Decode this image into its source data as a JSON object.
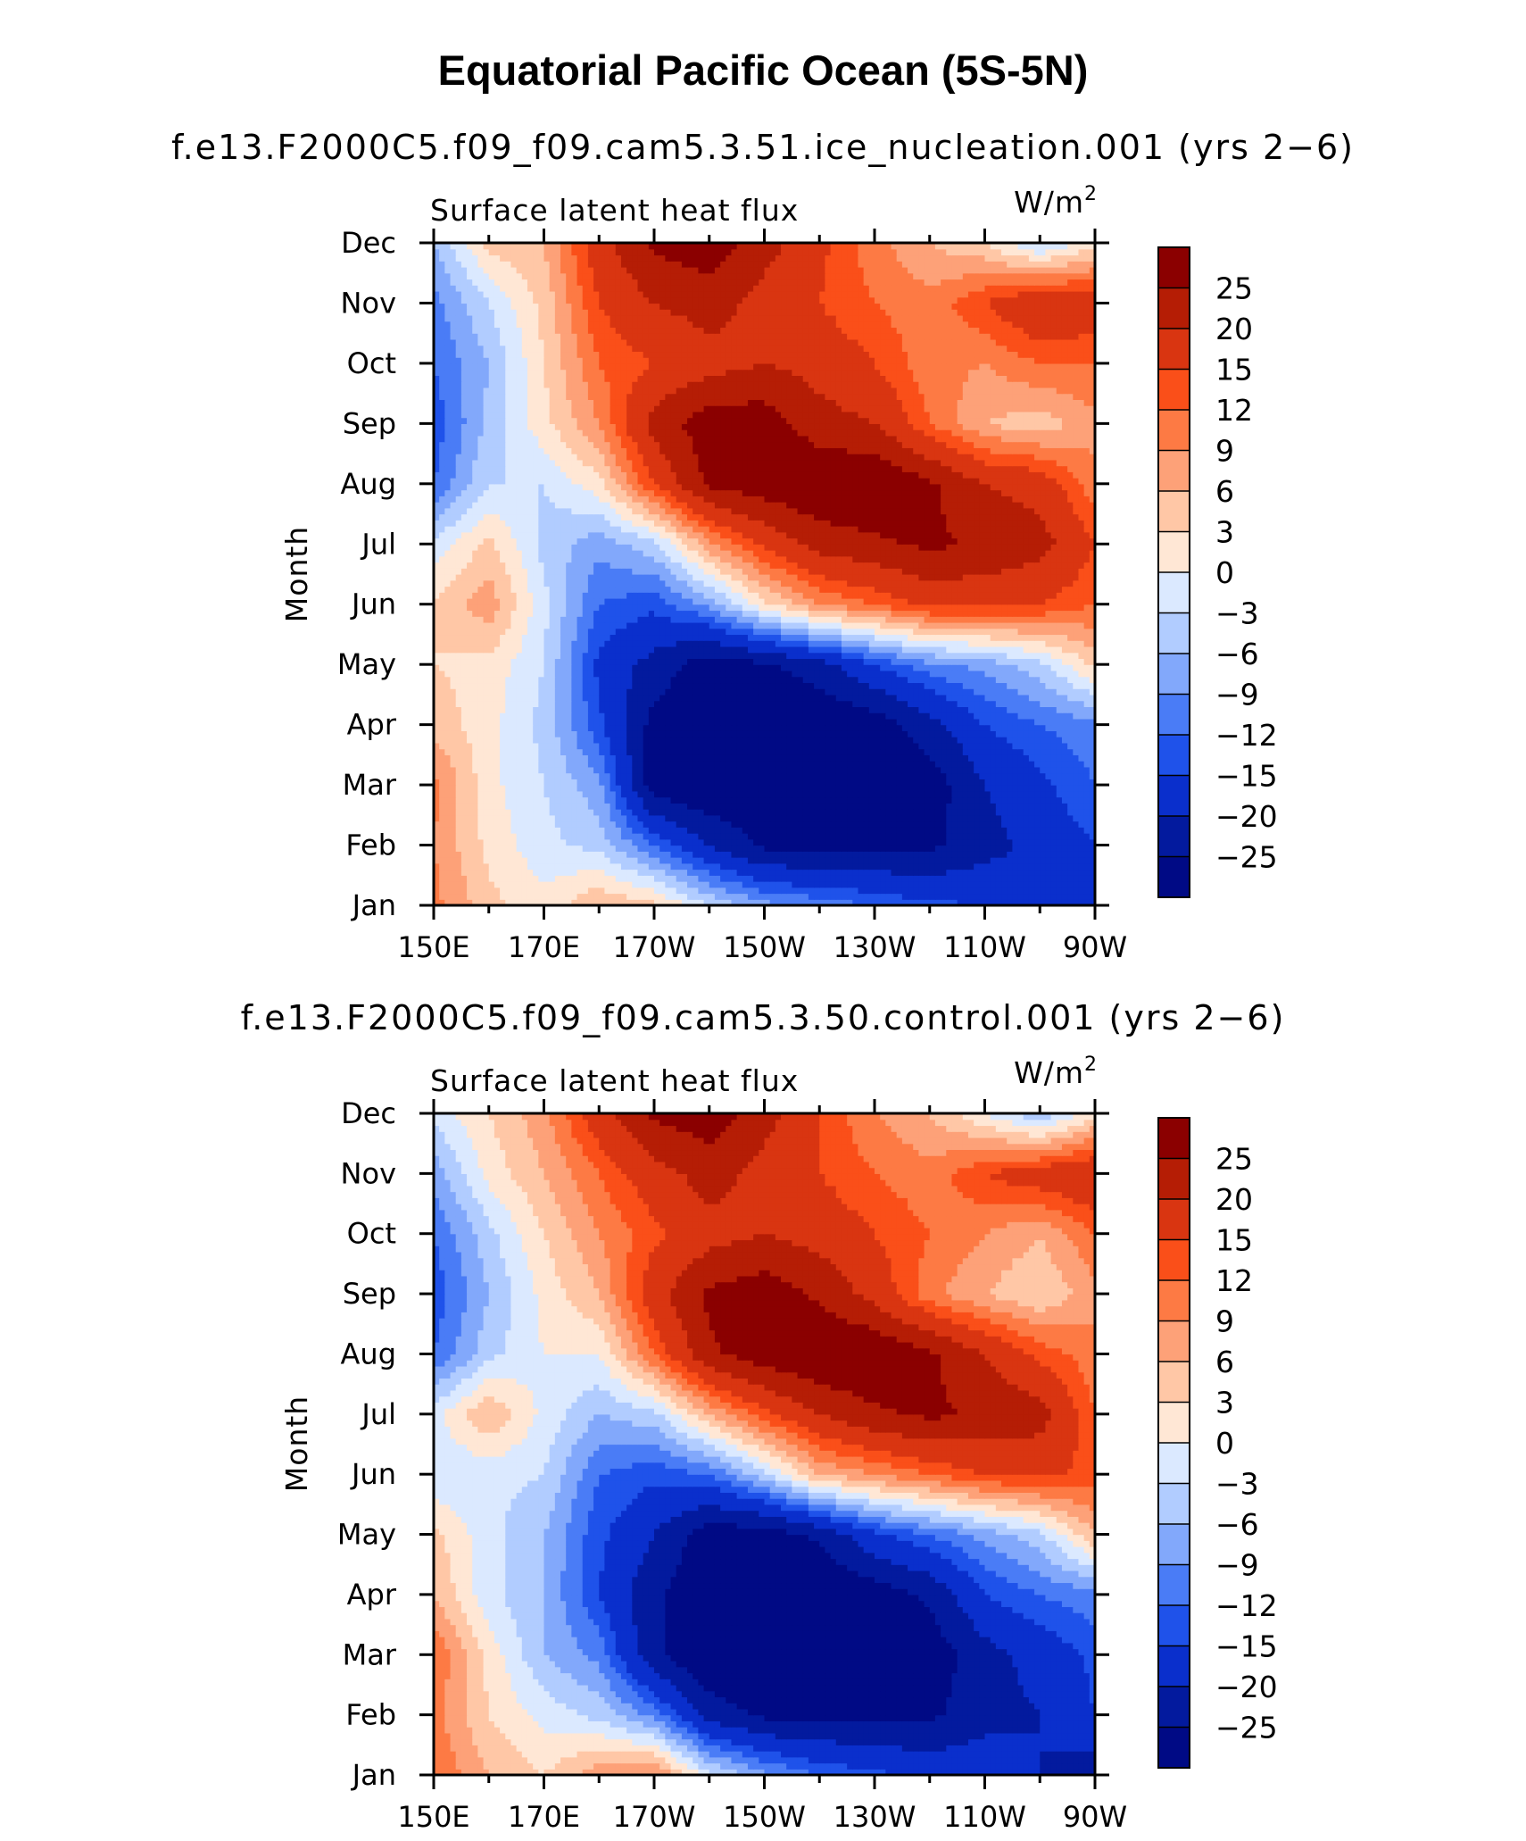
{
  "figure": {
    "title": "Equatorial Pacific Ocean (5S-5N)"
  },
  "colorbar": {
    "levels": [
      "25",
      "20",
      "15",
      "12",
      "9",
      "6",
      "3",
      "0",
      "−3",
      "−6",
      "−9",
      "−12",
      "−15",
      "−20",
      "−25"
    ],
    "colors": [
      "#8b0000",
      "#b51d05",
      "#d93511",
      "#fa4f19",
      "#fd7a44",
      "#fda178",
      "#ffc7a6",
      "#ffe7d5",
      "#dbe9ff",
      "#b1ccff",
      "#82a8fb",
      "#4a7cf6",
      "#1f52ea",
      "#0a2fcc",
      "#031a9e",
      "#000a85"
    ]
  },
  "chart_data": [
    {
      "type": "heatmap",
      "title": "f.e13.F2000C5.f09_f09.cam5.3.51.ice_nucleation.001 (yrs 2−6)",
      "left_string": "Surface latent heat flux",
      "right_string": "W/m",
      "right_superscript": "2",
      "ylabel": "Month",
      "xticklabels": [
        "150E",
        "170E",
        "170W",
        "150W",
        "130W",
        "110W",
        "90W"
      ],
      "x": [
        150,
        170,
        190,
        210,
        230,
        250,
        270
      ],
      "yticklabels": [
        "Dec",
        "Nov",
        "Oct",
        "Sep",
        "Aug",
        "Jul",
        "Jun",
        "May",
        "Apr",
        "Mar",
        "Feb",
        "Jan"
      ],
      "xlim": [
        150,
        270
      ],
      "ylim": [
        "Jan",
        "Dec"
      ],
      "z_note": "approximate contour values per month (rows Jan..Dec) at 10-degree longitude steps 150E..90W",
      "lon": [
        150,
        160,
        170,
        180,
        190,
        200,
        210,
        220,
        230,
        240,
        250,
        260,
        270
      ],
      "z": [
        [
          10,
          4,
          1,
          6,
          4,
          -3,
          -8,
          -10,
          -12,
          -14,
          -15,
          -20,
          -18
        ],
        [
          9,
          2,
          -2,
          -4,
          -12,
          -20,
          -26,
          -26,
          -26,
          -26,
          -22,
          -18,
          -15
        ],
        [
          10,
          1,
          -3,
          -8,
          -28,
          -30,
          -30,
          -30,
          -30,
          -28,
          -20,
          -16,
          -12
        ],
        [
          5,
          1,
          -4,
          -14,
          -27,
          -30,
          -30,
          -30,
          -28,
          -22,
          -15,
          -12,
          -10
        ],
        [
          3,
          2,
          -3,
          -16,
          -22,
          -28,
          -26,
          -22,
          -15,
          -10,
          -8,
          -4,
          4
        ],
        [
          3,
          8,
          -2,
          -12,
          -14,
          -8,
          2,
          9,
          12,
          16,
          16,
          15,
          12
        ],
        [
          -2,
          4,
          -4,
          -8,
          -4,
          8,
          16,
          22,
          24,
          26,
          24,
          22,
          15
        ],
        [
          -12,
          -3,
          -3,
          2,
          15,
          26,
          28,
          30,
          30,
          26,
          20,
          18,
          10
        ],
        [
          -14,
          -5,
          2,
          9,
          22,
          28,
          28,
          22,
          20,
          12,
          6,
          4,
          8
        ],
        [
          -12,
          -6,
          3,
          12,
          15,
          18,
          20,
          18,
          15,
          10,
          9,
          12,
          12
        ],
        [
          -10,
          -3,
          4,
          15,
          20,
          22,
          18,
          15,
          12,
          10,
          15,
          20,
          18
        ],
        [
          -6,
          4,
          6,
          18,
          26,
          28,
          22,
          16,
          10,
          6,
          3,
          -4,
          2
        ]
      ]
    },
    {
      "type": "heatmap",
      "title": "f.e13.F2000C5.f09_f09.cam5.3.50.control.001 (yrs 2−6)",
      "left_string": "Surface latent heat flux",
      "right_string": "W/m",
      "right_superscript": "2",
      "ylabel": "Month",
      "xticklabels": [
        "150E",
        "170E",
        "170W",
        "150W",
        "130W",
        "110W",
        "90W"
      ],
      "x": [
        150,
        170,
        190,
        210,
        230,
        250,
        270
      ],
      "yticklabels": [
        "Dec",
        "Nov",
        "Oct",
        "Sep",
        "Aug",
        "Jul",
        "Jun",
        "May",
        "Apr",
        "Mar",
        "Feb",
        "Jan"
      ],
      "xlim": [
        150,
        270
      ],
      "ylim": [
        "Jan",
        "Dec"
      ],
      "z_note": "approximate contour values per month (rows Jan..Dec) at 10-degree longitude steps 150E..90W",
      "lon": [
        150,
        160,
        170,
        180,
        190,
        200,
        210,
        220,
        230,
        240,
        250,
        260,
        270
      ],
      "z": [
        [
          12,
          6,
          3,
          8,
          10,
          -2,
          -8,
          -12,
          -14,
          -16,
          -16,
          -20,
          -24
        ],
        [
          10,
          3,
          -1,
          -4,
          -10,
          -22,
          -26,
          -26,
          -26,
          -26,
          -22,
          -20,
          -15
        ],
        [
          12,
          2,
          -6,
          -10,
          -24,
          -30,
          -30,
          -30,
          -30,
          -28,
          -22,
          -18,
          -14
        ],
        [
          6,
          -2,
          -6,
          -15,
          -24,
          -30,
          -30,
          -30,
          -28,
          -24,
          -15,
          -12,
          -10
        ],
        [
          4,
          -2,
          -6,
          -14,
          -20,
          -28,
          -28,
          -24,
          -16,
          -12,
          -8,
          -4,
          6
        ],
        [
          -3,
          -2,
          -3,
          -12,
          -14,
          -12,
          -4,
          6,
          9,
          12,
          15,
          16,
          14
        ],
        [
          -1,
          6,
          -1,
          -6,
          -4,
          6,
          14,
          20,
          24,
          26,
          24,
          22,
          12
        ],
        [
          -12,
          -4,
          0,
          0,
          12,
          24,
          28,
          30,
          30,
          26,
          20,
          14,
          10
        ],
        [
          -14,
          -6,
          1,
          6,
          18,
          26,
          28,
          24,
          18,
          10,
          6,
          3,
          8
        ],
        [
          -12,
          -4,
          3,
          9,
          14,
          18,
          20,
          18,
          15,
          12,
          9,
          6,
          12
        ],
        [
          -8,
          1,
          6,
          12,
          18,
          22,
          18,
          15,
          12,
          10,
          15,
          18,
          20
        ],
        [
          -2,
          3,
          8,
          18,
          26,
          28,
          22,
          15,
          9,
          6,
          0,
          -6,
          2
        ]
      ]
    }
  ]
}
